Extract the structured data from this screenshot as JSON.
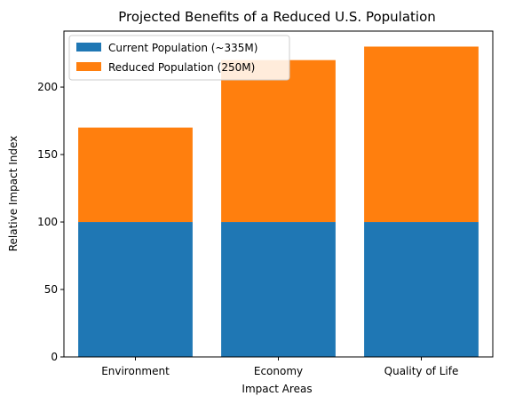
{
  "chart_data": {
    "type": "bar",
    "stacked": true,
    "title": "Projected Benefits of a Reduced U.S. Population",
    "xlabel": "Impact Areas",
    "ylabel": "Relative Impact Index",
    "categories": [
      "Environment",
      "Economy",
      "Quality of Life"
    ],
    "series": [
      {
        "name": "Current Population (~335M)",
        "values": [
          100,
          100,
          100
        ],
        "color": "#1f77b4"
      },
      {
        "name": "Reduced Population (250M)",
        "values": [
          70,
          120,
          130
        ],
        "color": "#ff7f0e"
      }
    ],
    "ylim": [
      0,
      241.5
    ],
    "yticks": [
      0,
      50,
      100,
      150,
      200
    ],
    "grid": false,
    "legend_position": "upper-left"
  }
}
